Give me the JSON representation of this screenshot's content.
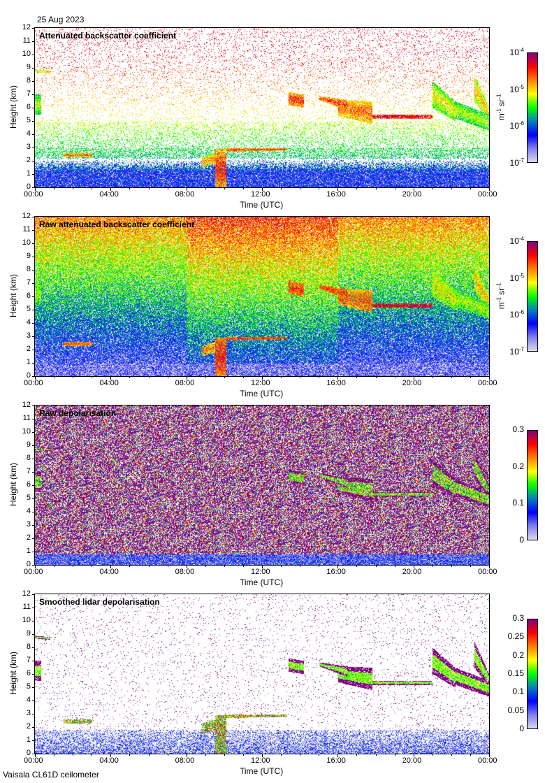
{
  "header": {
    "date": "25 Aug 2023"
  },
  "footer": {
    "instrument": "Vaisala CL61D ceilometer"
  },
  "colors": {
    "colormap": [
      "#d8d8ec",
      "#8080f0",
      "#0000ff",
      "#0080c0",
      "#00ff00",
      "#ffff00",
      "#ff8000",
      "#ff0000",
      "#800080"
    ]
  },
  "chart_data": [
    {
      "type": "heatmap",
      "title": "Attenuated backscatter coefficient",
      "xlabel": "Time (UTC)",
      "ylabel": "Height (km)",
      "xticks": [
        "00:00",
        "04:00",
        "08:00",
        "12:00",
        "16:00",
        "20:00",
        "00:00"
      ],
      "yticks": [
        "0",
        "1",
        "2",
        "3",
        "4",
        "5",
        "6",
        "7",
        "8",
        "9",
        "10",
        "11",
        "12"
      ],
      "xlim_hours": [
        0,
        24
      ],
      "ylim_km": [
        0,
        12
      ],
      "colorbar": {
        "scale": "log",
        "range": [
          1e-07,
          0.0001
        ],
        "unit": "m-1 sr-1",
        "ticks": [
          {
            "base": "10",
            "exp": "-4"
          },
          {
            "base": "10",
            "exp": "-5"
          },
          {
            "base": "10",
            "exp": "-6"
          },
          {
            "base": "10",
            "exp": "-7"
          }
        ]
      },
      "style": "clean"
    },
    {
      "type": "heatmap",
      "title": "Raw attenuated backscatter coefficient",
      "xlabel": "Time (UTC)",
      "ylabel": "Height (km)",
      "xticks": [
        "00:00",
        "04:00",
        "08:00",
        "12:00",
        "16:00",
        "20:00",
        "00:00"
      ],
      "yticks": [
        "0",
        "1",
        "2",
        "3",
        "4",
        "5",
        "6",
        "7",
        "8",
        "9",
        "10",
        "11",
        "12"
      ],
      "xlim_hours": [
        0,
        24
      ],
      "ylim_km": [
        0,
        12
      ],
      "colorbar": {
        "scale": "log",
        "range": [
          1e-07,
          0.0001
        ],
        "unit": "m-1 sr-1",
        "ticks": [
          {
            "base": "10",
            "exp": "-4"
          },
          {
            "base": "10",
            "exp": "-5"
          },
          {
            "base": "10",
            "exp": "-6"
          },
          {
            "base": "10",
            "exp": "-7"
          }
        ]
      },
      "style": "raw"
    },
    {
      "type": "heatmap",
      "title": "Raw depolarisation",
      "xlabel": "Time (UTC)",
      "ylabel": "Height (km)",
      "xticks": [
        "00:00",
        "04:00",
        "08:00",
        "12:00",
        "16:00",
        "20:00",
        "00:00"
      ],
      "yticks": [
        "0",
        "1",
        "2",
        "3",
        "4",
        "5",
        "6",
        "7",
        "8",
        "9",
        "10",
        "11",
        "12"
      ],
      "xlim_hours": [
        0,
        24
      ],
      "ylim_km": [
        0,
        12
      ],
      "colorbar": {
        "scale": "linear",
        "range": [
          0,
          0.3
        ],
        "unit": "",
        "ticks": [
          {
            "base": "0.3"
          },
          {
            "base": "0.2"
          },
          {
            "base": "0.1"
          },
          {
            "base": "0"
          }
        ]
      },
      "style": "rawdepol"
    },
    {
      "type": "heatmap",
      "title": "Smoothed lidar depolarisation",
      "xlabel": "Time (UTC)",
      "ylabel": "Height (km)",
      "xticks": [
        "00:00",
        "04:00",
        "08:00",
        "12:00",
        "16:00",
        "20:00",
        "00:00"
      ],
      "yticks": [
        "0",
        "1",
        "2",
        "3",
        "4",
        "5",
        "6",
        "7",
        "8",
        "9",
        "10",
        "11",
        "12"
      ],
      "xlim_hours": [
        0,
        24
      ],
      "ylim_km": [
        0,
        12
      ],
      "colorbar": {
        "scale": "linear",
        "range": [
          0,
          0.3
        ],
        "unit": "",
        "ticks": [
          {
            "base": "0.3"
          },
          {
            "base": "0.25"
          },
          {
            "base": "0.2"
          },
          {
            "base": "0.15"
          },
          {
            "base": "0.1"
          },
          {
            "base": "0.05"
          },
          {
            "base": "0"
          }
        ]
      },
      "style": "depol"
    }
  ],
  "features": [
    {
      "name": "low cloud",
      "t": [
        1.5,
        3.0
      ],
      "h_start": [
        2.3,
        2.6
      ],
      "h_end": [
        2.3,
        2.6
      ],
      "value": 0.8
    },
    {
      "name": "precipitation",
      "t": [
        9.5,
        10.1
      ],
      "h_start": [
        0,
        2.9
      ],
      "h_end": [
        0,
        2.9
      ],
      "value": 0.85
    },
    {
      "name": "cloud",
      "t": [
        8.8,
        9.5
      ],
      "h_start": [
        1.5,
        2.3
      ],
      "h_end": [
        1.8,
        2.6
      ],
      "value": 0.75
    },
    {
      "name": "cloud layer",
      "t": [
        10,
        13.3
      ],
      "h_start": [
        2.7,
        2.95
      ],
      "h_end": [
        2.8,
        3.0
      ],
      "value": 0.85
    },
    {
      "name": "mid cloud",
      "t": [
        13.4,
        14.2
      ],
      "h_start": [
        6.2,
        7.2
      ],
      "h_end": [
        6.0,
        7.0
      ],
      "value": 0.85
    },
    {
      "name": "mid cloud",
      "t": [
        15.0,
        16.5
      ],
      "h_start": [
        6.6,
        6.9
      ],
      "h_end": [
        5.8,
        6.6
      ],
      "value": 0.85
    },
    {
      "name": "mid cloud",
      "t": [
        16.0,
        17.8
      ],
      "h_start": [
        5.4,
        6.6
      ],
      "h_end": [
        4.8,
        6.5
      ],
      "value": 0.8
    },
    {
      "name": "thin layer",
      "t": [
        17.6,
        21.0
      ],
      "h_start": [
        5.2,
        5.5
      ],
      "h_end": [
        5.2,
        5.5
      ],
      "value": 0.95
    },
    {
      "name": "fallstreak",
      "t": [
        21.0,
        22.2
      ],
      "h_start": [
        6.0,
        8.0
      ],
      "h_end": [
        5.0,
        6.5
      ],
      "value": 0.65
    },
    {
      "name": "fallstreak",
      "t": [
        22.2,
        24
      ],
      "h_start": [
        5.2,
        6.5
      ],
      "h_end": [
        4.3,
        5.5
      ],
      "value": 0.6
    },
    {
      "name": "fallstreak",
      "t": [
        23.2,
        24
      ],
      "h_start": [
        6.5,
        8.5
      ],
      "h_end": [
        5.0,
        6.0
      ],
      "value": 0.7
    },
    {
      "name": "edge cloud",
      "t": [
        0,
        0.3
      ],
      "h_start": [
        5.5,
        7.0
      ],
      "h_end": [
        5.5,
        7.0
      ],
      "value": 0.6
    },
    {
      "name": "high layer",
      "t": [
        0,
        0.8
      ],
      "h_start": [
        8.7,
        8.9
      ],
      "h_end": [
        8.6,
        8.8
      ],
      "value": 0.7
    }
  ]
}
